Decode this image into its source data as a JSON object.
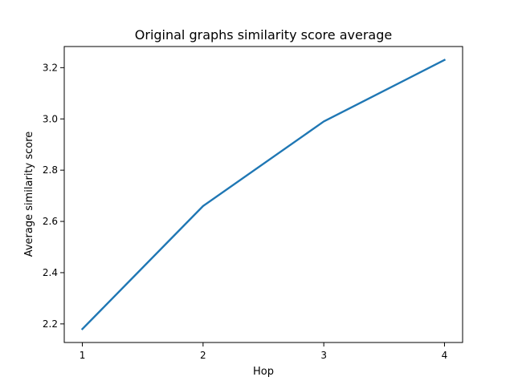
{
  "chart_data": {
    "type": "line",
    "title": "Original graphs similarity score average",
    "xlabel": "Hop",
    "ylabel": "Average similarity score",
    "x": [
      1,
      2,
      3,
      4
    ],
    "series": [
      {
        "values": [
          2.18,
          2.66,
          2.99,
          3.23
        ],
        "color": "#1f77b4"
      }
    ],
    "xticks": [
      "1",
      "2",
      "3",
      "4"
    ],
    "yticks": [
      "2.2",
      "2.4",
      "2.6",
      "2.8",
      "3.0",
      "3.2"
    ],
    "xlim": [
      0.85,
      4.15
    ],
    "ylim": [
      2.1275,
      3.2825
    ],
    "grid": false,
    "legend": "none"
  }
}
